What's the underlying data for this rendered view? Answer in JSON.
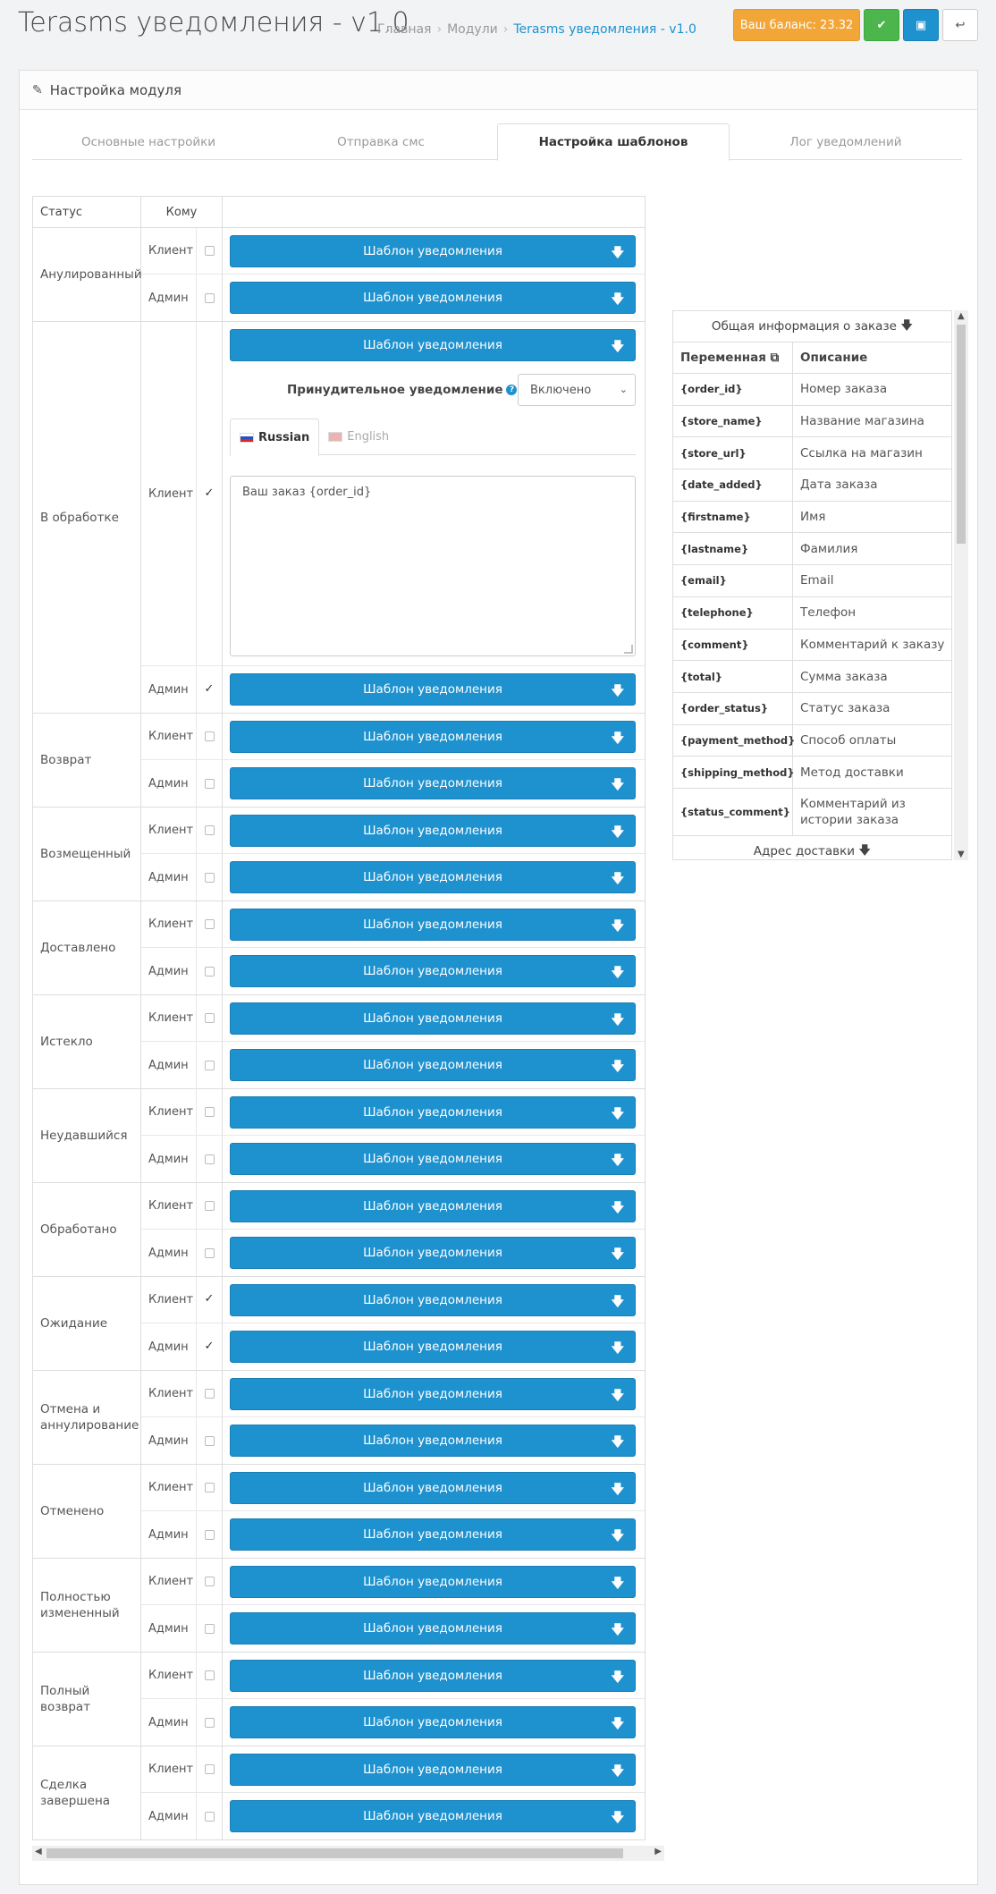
{
  "header": {
    "title": "Terasms уведомления - v1.0",
    "breadcrumb": [
      "Главная",
      "Модули",
      "Terasms уведомления - v1.0"
    ],
    "balance_label": "Ваш баланс: 23.32",
    "colors": {
      "balance": "#f3a638",
      "ok": "#4cb64c",
      "save": "#1e91cf"
    },
    "icons": {
      "ok": "check-icon",
      "save": "floppy-icon",
      "back": "reply-icon"
    }
  },
  "panel": {
    "heading": "Настройка модуля",
    "tabs": [
      "Основные настройки",
      "Отправка смс",
      "Настройка шаблонов",
      "Лог уведомлений"
    ],
    "active_tab": "Настройка шаблонов"
  },
  "grid": {
    "col_status": "Статус",
    "col_who": "Кому",
    "client_label": "Клиент",
    "admin_label": "Админ",
    "button_label": "Шаблон уведомления",
    "groups": [
      {
        "status": "Анулированный",
        "client": false,
        "admin": false
      },
      {
        "status": "В обработке",
        "client": true,
        "admin": true
      },
      {
        "status": "Возврат",
        "client": false,
        "admin": false
      },
      {
        "status": "Возмещенный",
        "client": false,
        "admin": false
      },
      {
        "status": "Доставлено",
        "client": false,
        "admin": false
      },
      {
        "status": "Истекло",
        "client": false,
        "admin": false
      },
      {
        "status": "Неудавшийся",
        "client": false,
        "admin": false
      },
      {
        "status": "Обработано",
        "client": false,
        "admin": false
      },
      {
        "status": "Ожидание",
        "client": true,
        "admin": true
      },
      {
        "status": "Отмена и аннулирование",
        "client": false,
        "admin": false
      },
      {
        "status": "Отменено",
        "client": false,
        "admin": false
      },
      {
        "status": "Полностью измененный",
        "client": false,
        "admin": false
      },
      {
        "status": "Полный возврат",
        "client": false,
        "admin": false
      },
      {
        "status": "Сделка завершена",
        "client": false,
        "admin": false
      }
    ],
    "expanded": {
      "force_label": "Принудительное уведомление",
      "force_value": "Включено",
      "lang_tabs": [
        "Russian",
        "English"
      ],
      "active_lang": "Russian",
      "template_text": "Ваш заказ {order_id}"
    }
  },
  "variables": {
    "heading": "Общая информация о заказе",
    "col_var": "Переменная",
    "col_desc": "Описание",
    "rows": [
      {
        "var": "{order_id}",
        "desc": "Номер заказа"
      },
      {
        "var": "{store_name}",
        "desc": "Название магазина"
      },
      {
        "var": "{store_url}",
        "desc": "Ссылка на магазин"
      },
      {
        "var": "{date_added}",
        "desc": "Дата заказа"
      },
      {
        "var": "{firstname}",
        "desc": "Имя"
      },
      {
        "var": "{lastname}",
        "desc": "Фамилия"
      },
      {
        "var": "{email}",
        "desc": "Email"
      },
      {
        "var": "{telephone}",
        "desc": "Телефон"
      },
      {
        "var": "{comment}",
        "desc": "Комментарий к заказу"
      },
      {
        "var": "{total}",
        "desc": "Сумма заказа"
      },
      {
        "var": "{order_status}",
        "desc": "Статус заказа"
      },
      {
        "var": "{payment_method}",
        "desc": "Способ оплаты"
      },
      {
        "var": "{shipping_method}",
        "desc": "Метод доставки"
      },
      {
        "var": "{status_comment}",
        "desc": "Комментарий из истории заказа"
      }
    ],
    "footer": "Адрес доставки"
  }
}
